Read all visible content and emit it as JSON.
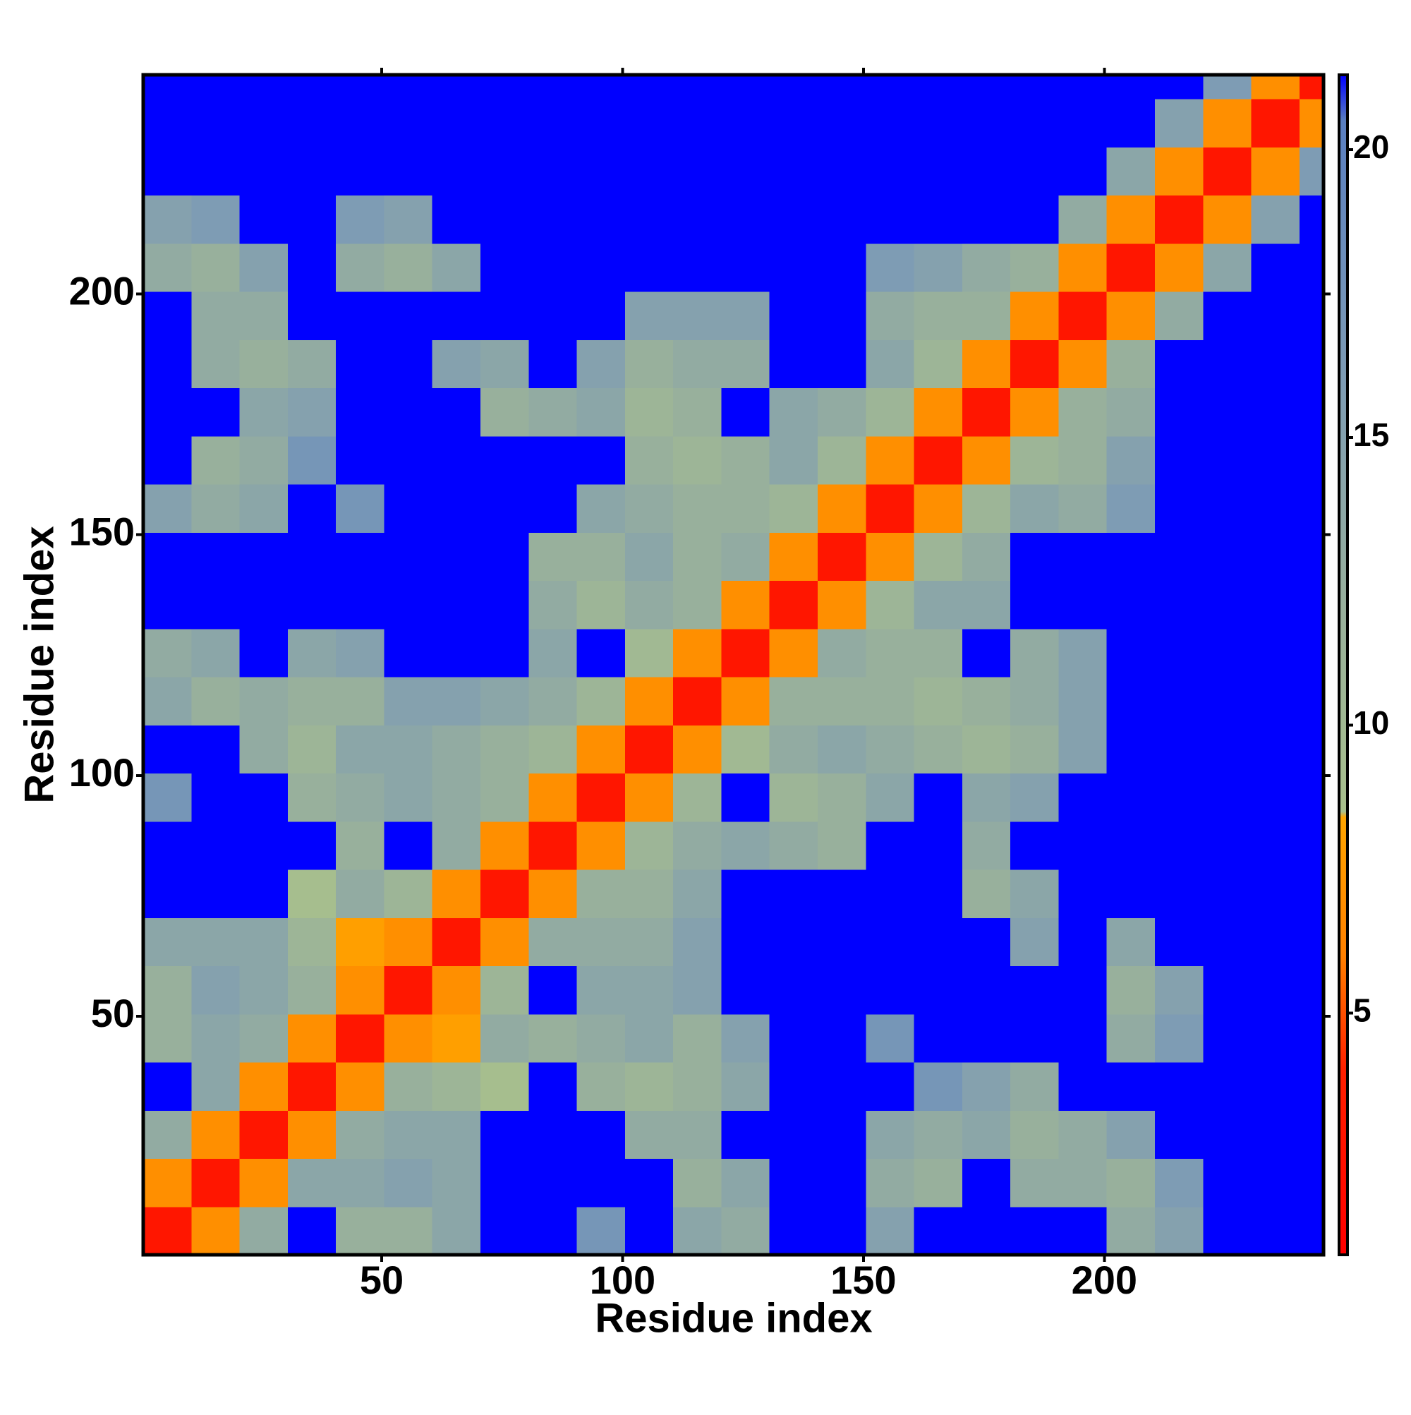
{
  "chart_data": {
    "type": "heatmap",
    "xlabel": "Residue index",
    "ylabel": "Residue index",
    "xlim": [
      0.5,
      245.5
    ],
    "ylim": [
      0.5,
      245.5
    ],
    "xticks": [
      50,
      100,
      150,
      200
    ],
    "yticks": [
      50,
      100,
      150,
      200
    ],
    "xbins": [
      0.5,
      10.5,
      20.5,
      30.5,
      40.5,
      50.5,
      60.5,
      70.5,
      80.5,
      90.5,
      100.5,
      110.5,
      120.5,
      130.5,
      140.5,
      150.5,
      160.5,
      170.5,
      180.5,
      190.5,
      200.5,
      210.5,
      220.5,
      230.5,
      240.5,
      245.5
    ],
    "ybins": [
      0.5,
      10.5,
      20.5,
      30.5,
      40.5,
      50.5,
      60.5,
      70.5,
      80.5,
      90.5,
      100.5,
      110.5,
      120.5,
      130.5,
      140.5,
      150.5,
      160.5,
      170.5,
      180.5,
      190.5,
      200.5,
      210.5,
      220.5,
      230.5,
      240.5,
      245.5
    ],
    "z": [
      [
        3,
        7,
        13,
        22,
        12,
        12,
        14,
        22,
        22,
        17,
        22,
        14,
        13,
        22,
        22,
        15,
        22,
        22,
        22,
        22,
        13,
        15,
        22,
        22,
        22
      ],
      [
        7,
        3,
        7,
        14,
        14,
        15,
        14,
        22,
        22,
        22,
        22,
        12,
        14,
        22,
        22,
        13,
        12,
        22,
        13,
        13,
        12,
        16,
        22,
        22,
        22
      ],
      [
        13,
        7,
        3,
        7,
        13,
        14,
        14,
        22,
        22,
        22,
        13,
        13,
        22,
        22,
        22,
        14,
        13,
        14,
        12,
        13,
        15,
        22,
        22,
        22,
        22
      ],
      [
        22,
        14,
        7,
        3,
        7,
        12,
        11,
        9,
        22,
        12,
        11,
        12,
        14,
        22,
        22,
        22,
        17,
        15,
        13,
        22,
        22,
        22,
        22,
        22,
        22
      ],
      [
        12,
        14,
        13,
        7,
        3,
        7,
        8,
        13,
        12,
        13,
        14,
        12,
        15,
        22,
        22,
        17,
        22,
        22,
        22,
        22,
        13,
        16,
        22,
        22,
        22
      ],
      [
        12,
        15,
        14,
        12,
        7,
        3,
        7,
        11,
        22,
        14,
        14,
        15,
        22,
        22,
        22,
        22,
        22,
        22,
        22,
        22,
        12,
        15,
        22,
        22,
        22
      ],
      [
        14,
        14,
        14,
        11,
        8,
        7,
        3,
        7,
        13,
        13,
        13,
        15,
        22,
        22,
        22,
        22,
        22,
        22,
        15,
        22,
        14,
        22,
        22,
        22,
        22
      ],
      [
        22,
        22,
        22,
        9,
        13,
        11,
        7,
        3,
        7,
        12,
        12,
        14,
        22,
        22,
        22,
        22,
        22,
        12,
        14,
        22,
        22,
        22,
        22,
        22,
        22
      ],
      [
        22,
        22,
        22,
        22,
        12,
        22,
        13,
        7,
        3,
        7,
        11,
        13,
        14,
        13,
        12,
        22,
        22,
        13,
        22,
        22,
        22,
        22,
        22,
        22,
        22
      ],
      [
        17,
        22,
        22,
        12,
        13,
        14,
        13,
        12,
        7,
        3,
        7,
        11,
        22,
        11,
        12,
        14,
        22,
        14,
        15,
        22,
        22,
        22,
        22,
        22,
        22
      ],
      [
        22,
        22,
        13,
        11,
        14,
        14,
        13,
        12,
        11,
        7,
        3,
        7,
        10,
        13,
        14,
        13,
        12,
        11,
        12,
        15,
        22,
        22,
        22,
        22,
        22
      ],
      [
        14,
        12,
        13,
        12,
        12,
        15,
        15,
        14,
        13,
        11,
        7,
        3,
        7,
        12,
        12,
        12,
        11,
        12,
        13,
        15,
        22,
        22,
        22,
        22,
        22
      ],
      [
        13,
        14,
        22,
        14,
        15,
        22,
        22,
        22,
        14,
        22,
        10,
        7,
        3,
        7,
        13,
        12,
        12,
        22,
        13,
        15,
        22,
        22,
        22,
        22,
        22
      ],
      [
        22,
        22,
        22,
        22,
        22,
        22,
        22,
        22,
        13,
        11,
        13,
        12,
        7,
        3,
        7,
        11,
        14,
        14,
        22,
        22,
        22,
        22,
        22,
        22,
        22
      ],
      [
        22,
        22,
        22,
        22,
        22,
        22,
        22,
        22,
        12,
        12,
        14,
        12,
        13,
        7,
        3,
        7,
        11,
        13,
        22,
        22,
        22,
        22,
        22,
        22,
        22
      ],
      [
        15,
        13,
        14,
        22,
        17,
        22,
        22,
        22,
        22,
        14,
        13,
        12,
        12,
        11,
        7,
        3,
        7,
        11,
        14,
        13,
        16,
        22,
        22,
        22,
        22
      ],
      [
        22,
        12,
        13,
        17,
        22,
        22,
        22,
        22,
        22,
        22,
        12,
        11,
        12,
        14,
        11,
        7,
        3,
        7,
        11,
        12,
        15,
        22,
        22,
        22,
        22
      ],
      [
        22,
        22,
        14,
        15,
        22,
        22,
        22,
        12,
        13,
        14,
        11,
        12,
        22,
        14,
        13,
        11,
        7,
        3,
        7,
        12,
        13,
        22,
        22,
        22,
        22
      ],
      [
        22,
        13,
        12,
        13,
        22,
        22,
        15,
        14,
        22,
        15,
        12,
        13,
        13,
        22,
        22,
        14,
        11,
        7,
        3,
        7,
        12,
        22,
        22,
        22,
        22
      ],
      [
        22,
        13,
        13,
        22,
        22,
        22,
        22,
        22,
        22,
        22,
        15,
        15,
        15,
        22,
        22,
        13,
        12,
        12,
        7,
        3,
        7,
        13,
        22,
        22,
        22
      ],
      [
        13,
        12,
        15,
        22,
        13,
        12,
        14,
        22,
        22,
        22,
        22,
        22,
        22,
        22,
        22,
        16,
        15,
        13,
        12,
        7,
        3,
        7,
        14,
        22,
        22
      ],
      [
        15,
        16,
        22,
        22,
        16,
        15,
        22,
        22,
        22,
        22,
        22,
        22,
        22,
        22,
        22,
        22,
        22,
        22,
        22,
        13,
        7,
        3,
        7,
        15,
        22
      ],
      [
        22,
        22,
        22,
        22,
        22,
        22,
        22,
        22,
        22,
        22,
        22,
        22,
        22,
        22,
        22,
        22,
        22,
        22,
        22,
        22,
        14,
        7,
        3,
        7,
        16
      ],
      [
        22,
        22,
        22,
        22,
        22,
        22,
        22,
        22,
        22,
        22,
        22,
        22,
        22,
        22,
        22,
        22,
        22,
        22,
        22,
        22,
        22,
        15,
        7,
        3,
        7
      ],
      [
        22,
        22,
        22,
        22,
        22,
        22,
        22,
        22,
        22,
        22,
        22,
        22,
        22,
        22,
        22,
        22,
        22,
        22,
        22,
        22,
        22,
        22,
        16,
        7,
        3
      ]
    ],
    "colorscale": [
      [
        0.8,
        "#ff0000"
      ],
      [
        4,
        "#ff2000"
      ],
      [
        6,
        "#ff8000"
      ],
      [
        8.4,
        "#ffa500"
      ],
      [
        8.5,
        "#a8c08c"
      ],
      [
        12,
        "#98b09c"
      ],
      [
        16,
        "#7e9cb4"
      ],
      [
        20.5,
        "#5a7fc0"
      ],
      [
        21.3,
        "#0000ff"
      ]
    ],
    "over_color": "#0000ff",
    "colorbar": {
      "zlim": [
        0.8,
        21.3
      ],
      "ticks": [
        5,
        10,
        15,
        20
      ]
    }
  }
}
